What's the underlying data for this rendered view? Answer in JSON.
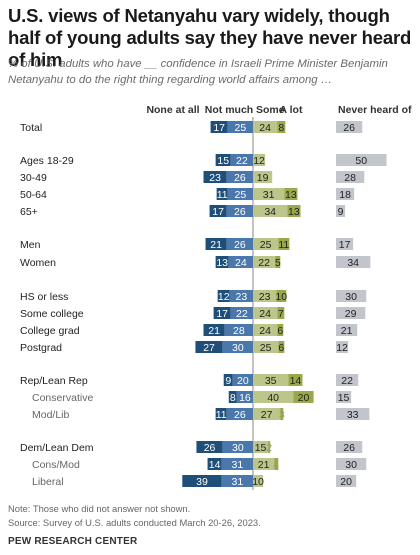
{
  "title": "U.S. views of Netanyahu vary widely, though half of young adults say they have never heard of him",
  "subtitle": "% of U.S. adults who have __ confidence in Israeli Prime Minister Benjamin Netanyahu to do the right thing regarding world affairs among …",
  "note": "Note: Those who did not answer not shown.",
  "source": "Source: Survey of U.S. adults conducted March 20-26, 2023.",
  "brand": "PEW RESEARCH CENTER",
  "colors": {
    "none_at_all": "#1f4e79",
    "not_much": "#4a78ad",
    "some": "#bcc68a",
    "a_lot": "#98a84a",
    "never_heard": "#c3c5cd",
    "label_blue": "#ffffff",
    "label_dark": "#222222"
  },
  "chart_data": {
    "type": "bar",
    "series": [
      {
        "name": "None at all"
      },
      {
        "name": "Not much"
      },
      {
        "name": "Some"
      },
      {
        "name": "A lot"
      },
      {
        "name": "Never heard of"
      }
    ],
    "rows": [
      {
        "label": "Total",
        "none_at_all": 17,
        "not_much": 25,
        "some": 24,
        "a_lot": 8,
        "never_heard": 26
      },
      {
        "label": "Ages 18-29",
        "none_at_all": 15,
        "not_much": 22,
        "some": 12,
        "a_lot": 0,
        "never_heard": 50
      },
      {
        "label": "30-49",
        "none_at_all": 23,
        "not_much": 26,
        "some": 19,
        "a_lot": 0,
        "never_heard": 28
      },
      {
        "label": "50-64",
        "none_at_all": 11,
        "not_much": 25,
        "some": 31,
        "a_lot": 13,
        "never_heard": 18
      },
      {
        "label": "65+",
        "none_at_all": 17,
        "not_much": 26,
        "some": 34,
        "a_lot": 13,
        "never_heard": 9
      },
      {
        "label": "Men",
        "none_at_all": 21,
        "not_much": 26,
        "some": 25,
        "a_lot": 11,
        "never_heard": 17
      },
      {
        "label": "Women",
        "none_at_all": 13,
        "not_much": 24,
        "some": 22,
        "a_lot": 5,
        "never_heard": 34
      },
      {
        "label": "HS or less",
        "none_at_all": 12,
        "not_much": 23,
        "some": 23,
        "a_lot": 10,
        "never_heard": 30
      },
      {
        "label": "Some college",
        "none_at_all": 17,
        "not_much": 22,
        "some": 24,
        "a_lot": 7,
        "never_heard": 29
      },
      {
        "label": "College grad",
        "none_at_all": 21,
        "not_much": 28,
        "some": 24,
        "a_lot": 6,
        "never_heard": 21
      },
      {
        "label": "Postgrad",
        "none_at_all": 27,
        "not_much": 30,
        "some": 25,
        "a_lot": 6,
        "never_heard": 12
      },
      {
        "label": "Rep/Lean Rep",
        "none_at_all": 9,
        "not_much": 20,
        "some": 35,
        "a_lot": 14,
        "never_heard": 22
      },
      {
        "label": "Conservative",
        "none_at_all": 8,
        "not_much": 16,
        "some": 40,
        "a_lot": 20,
        "never_heard": 15
      },
      {
        "label": "Mod/Lib",
        "none_at_all": 11,
        "not_much": 26,
        "some": 27,
        "a_lot": 3,
        "never_heard": 33
      },
      {
        "label": "Dem/Lean Dem",
        "none_at_all": 26,
        "not_much": 30,
        "some": 15,
        "a_lot": 2,
        "never_heard": 26
      },
      {
        "label": "Cons/Mod",
        "none_at_all": 14,
        "not_much": 31,
        "some": 21,
        "a_lot": 4,
        "never_heard": 30
      },
      {
        "label": "Liberal",
        "none_at_all": 39,
        "not_much": 31,
        "some": 10,
        "a_lot": 0,
        "never_heard": 20
      }
    ]
  }
}
